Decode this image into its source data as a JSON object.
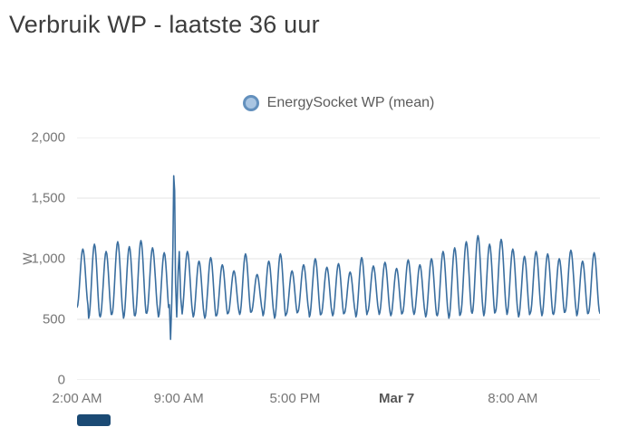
{
  "title": "Verbruik WP - laatste 36 uur",
  "legend": {
    "label": "EnergySocket WP (mean)",
    "dot_fill": "#a9c5e2",
    "dot_stroke": "#6390bd"
  },
  "bottom_bar": {
    "color": "#1b4a74"
  },
  "chart_data": {
    "type": "line",
    "title": "Verbruik WP - laatste 36 uur",
    "xlabel": "",
    "ylabel": "W",
    "ylim": [
      0,
      2000
    ],
    "grid": "horizontal",
    "legend_position": "top-center",
    "y_ticks": [
      {
        "value": 0,
        "label": "0"
      },
      {
        "value": 500,
        "label": "500"
      },
      {
        "value": 1000,
        "label": "1,000"
      },
      {
        "value": 1500,
        "label": "1,500"
      },
      {
        "value": 2000,
        "label": "2,000"
      }
    ],
    "x_axis": {
      "span_hours": 36,
      "ticks": [
        {
          "hour": 0,
          "label": "2:00 AM",
          "bold": false
        },
        {
          "hour": 7,
          "label": "9:00 AM",
          "bold": false
        },
        {
          "hour": 15,
          "label": "5:00 PM",
          "bold": false
        },
        {
          "hour": 22,
          "label": "Mar 7",
          "bold": true
        },
        {
          "hour": 30,
          "label": "8:00 AM",
          "bold": false
        }
      ]
    },
    "series": [
      {
        "name": "EnergySocket WP (mean)",
        "color": "#3a6e9f",
        "period_hours": 0.8,
        "cycle_peaks": [
          1080,
          1120,
          1060,
          1140,
          1100,
          1150,
          1090,
          1050,
          1050,
          1060,
          980,
          1010,
          950,
          900,
          1040,
          870,
          980,
          1040,
          900,
          950,
          1000,
          930,
          960,
          890,
          1010,
          940,
          970,
          920,
          990,
          950,
          1000,
          1060,
          1090,
          1140,
          1190,
          1120,
          1160,
          1080,
          1020,
          1060,
          1040,
          1000,
          1070,
          980,
          1050
        ],
        "cycle_troughs": [
          600,
          510,
          520,
          540,
          510,
          530,
          550,
          520,
          560,
          540,
          520,
          510,
          530,
          550,
          540,
          560,
          530,
          510,
          540,
          560,
          520,
          540,
          530,
          550,
          520,
          560,
          540,
          530,
          550,
          540,
          520,
          530,
          510,
          540,
          550,
          530,
          560,
          540,
          520,
          550,
          530,
          540,
          560,
          530,
          550
        ],
        "anomaly": {
          "start_hour": 6.32,
          "end_hour": 7.3,
          "points": [
            [
              6.36,
              620
            ],
            [
              6.44,
              335
            ],
            [
              6.52,
              640
            ],
            [
              6.6,
              1100
            ],
            [
              6.66,
              1684
            ],
            [
              6.72,
              1560
            ],
            [
              6.78,
              800
            ],
            [
              6.86,
              520
            ],
            [
              6.96,
              900
            ],
            [
              7.04,
              1060
            ],
            [
              7.14,
              680
            ],
            [
              7.24,
              545
            ]
          ]
        },
        "summary": "Oscillates roughly every 48 min between ~500 W and ~1,150 W over 36 hours; anomaly near 9:00 AM with dip to ~335 W followed by spike to ~1,684 W."
      }
    ]
  }
}
